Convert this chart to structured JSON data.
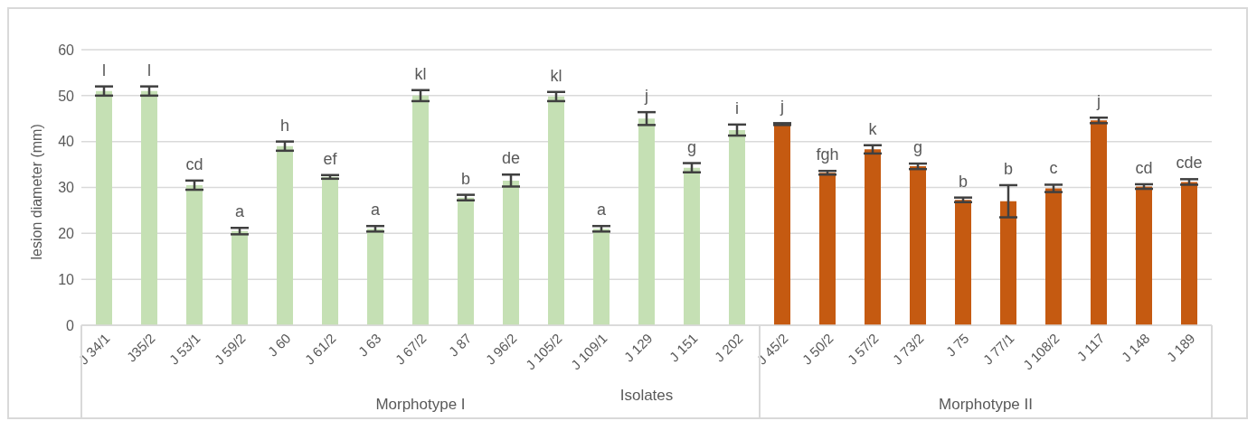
{
  "chart_data": {
    "type": "bar",
    "ylabel": "lesion diameter (mm)",
    "xlabel": "Isolates",
    "categories": [
      "J 34/1",
      "J35/2",
      "J 53/1",
      "J 59/2",
      "J 60",
      "J 61/2",
      "J 63",
      "J 67/2",
      "J 87",
      "J 96/2",
      "J 105/2",
      "J 109/1",
      "J 129",
      "J 151",
      "J 202",
      "J 45/2",
      "J 50/2",
      "J 57/2",
      "J 73/2",
      "J 75",
      "J 77/1",
      "J 108/2",
      "J 117",
      "J 148",
      "J 189"
    ],
    "values": [
      51,
      51,
      30.5,
      20.5,
      39,
      32.3,
      21,
      50,
      27.8,
      31.5,
      49.8,
      21,
      45,
      34.3,
      42.5,
      43.8,
      33.2,
      38.3,
      34.6,
      27.3,
      27,
      29.8,
      44.6,
      30.2,
      31.2
    ],
    "errors": [
      1,
      1,
      1,
      0.7,
      1,
      0.4,
      0.6,
      1.2,
      0.6,
      1.3,
      1,
      0.6,
      1.4,
      1,
      1.2,
      0.2,
      0.4,
      0.9,
      0.6,
      0.5,
      3.5,
      0.8,
      0.6,
      0.5,
      0.6
    ],
    "colors": [
      "#c5e0b4",
      "#c5e0b4",
      "#c5e0b4",
      "#c5e0b4",
      "#c5e0b4",
      "#c5e0b4",
      "#c5e0b4",
      "#c5e0b4",
      "#c5e0b4",
      "#c5e0b4",
      "#c5e0b4",
      "#c5e0b4",
      "#c5e0b4",
      "#c5e0b4",
      "#c5e0b4",
      "#c55a11",
      "#c55a11",
      "#c55a11",
      "#c55a11",
      "#c55a11",
      "#c55a11",
      "#c55a11",
      "#c55a11",
      "#c55a11",
      "#c55a11"
    ],
    "ylim": [
      0,
      60
    ],
    "yticks": [
      0,
      10,
      20,
      30,
      40,
      50,
      60
    ],
    "grid": "y",
    "legend": false,
    "value_labels": [
      "l",
      "l",
      "cd",
      "a",
      "h",
      "ef",
      "a",
      "kl",
      "b",
      "de",
      "kl",
      "a",
      "j",
      "g",
      "i",
      "j",
      "fgh",
      "k",
      "g",
      "b",
      "b",
      "c",
      "j",
      "cd",
      "cde"
    ],
    "annotations": [
      "Morphotype I",
      "Morphotype II"
    ]
  }
}
